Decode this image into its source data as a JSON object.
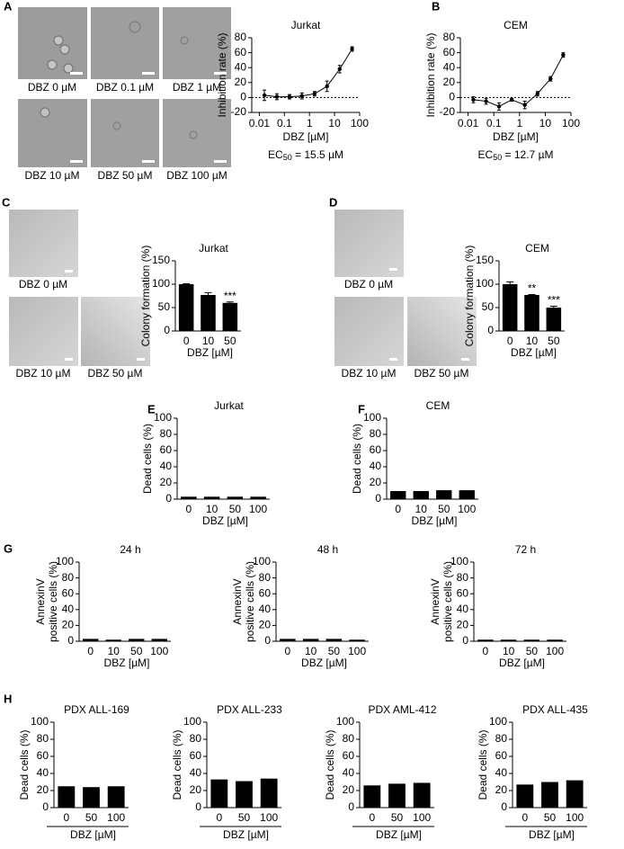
{
  "panel_labels": [
    "A",
    "B",
    "C",
    "D",
    "E",
    "F",
    "G",
    "H"
  ],
  "micrographs": {
    "A": [
      "DBZ 0 µM",
      "DBZ 0.1 µM",
      "DBZ 1 µM",
      "DBZ 10 µM",
      "DBZ 50 µM",
      "DBZ 100 µM"
    ],
    "C": [
      "DBZ 0 µM",
      "DBZ 10 µM",
      "DBZ 50 µM"
    ],
    "D": [
      "DBZ 0 µM",
      "DBZ 10 µM",
      "DBZ 50 µM"
    ]
  },
  "chart_data": [
    {
      "type": "line",
      "title": "Jurkat",
      "ylabel": "Inhibition rate (%)",
      "xlabel": "DBZ [µM]",
      "log_x": true,
      "color": "#000000",
      "x": [
        0.016,
        0.05,
        0.16,
        0.5,
        1.6,
        5,
        16,
        50
      ],
      "values": [
        3,
        1,
        1,
        2,
        5,
        15,
        38,
        65
      ],
      "errors": [
        7,
        4,
        3,
        4,
        3,
        7,
        5,
        3
      ],
      "xlim": [
        0.005,
        100
      ],
      "xticks": [
        0.01,
        0.1,
        1,
        10,
        100
      ],
      "ylim": [
        -20,
        80
      ],
      "yticks": [
        -20,
        0,
        20,
        40,
        60,
        80
      ],
      "hline": 0,
      "annotation": {
        "text": "EC",
        "subscript": "50",
        "suffix": " = 15.5 µM"
      }
    },
    {
      "type": "line",
      "title": "CEM",
      "ylabel": "Inhibition rate (%)",
      "xlabel": "DBZ [µM]",
      "log_x": true,
      "color": "#000000",
      "x": [
        0.016,
        0.05,
        0.16,
        0.5,
        1.6,
        5,
        16,
        50
      ],
      "values": [
        -3,
        -5,
        -12,
        -3,
        -10,
        5,
        25,
        57
      ],
      "errors": [
        4,
        4,
        5,
        2,
        5,
        3,
        3,
        3
      ],
      "xlim": [
        0.005,
        100
      ],
      "xticks": [
        0.01,
        0.1,
        1,
        10,
        100
      ],
      "ylim": [
        -20,
        80
      ],
      "yticks": [
        -20,
        0,
        20,
        40,
        60,
        80
      ],
      "hline": 0,
      "annotation": {
        "text": "EC",
        "subscript": "50",
        "suffix": " = 12.7 µM"
      }
    },
    {
      "type": "bar",
      "title": "Jurkat",
      "ylabel": "Colony formation (%)",
      "xlabel": "DBZ [µM]",
      "color": "#000000",
      "categories": [
        "0",
        "10",
        "50"
      ],
      "values": [
        100,
        77,
        60
      ],
      "errors": [
        1,
        5,
        2
      ],
      "ylim": [
        0,
        150
      ],
      "yticks": [
        0,
        50,
        100,
        150
      ],
      "annotations": [
        {
          "index": 2,
          "text": "***"
        }
      ]
    },
    {
      "type": "bar",
      "title": "CEM",
      "ylabel": "Colony formation (%)",
      "xlabel": "DBZ [µM]",
      "color": "#000000",
      "categories": [
        "0",
        "10",
        "50"
      ],
      "values": [
        100,
        77,
        50
      ],
      "errors": [
        5,
        1,
        3
      ],
      "ylim": [
        0,
        150
      ],
      "yticks": [
        0,
        50,
        100,
        150
      ],
      "annotations": [
        {
          "index": 1,
          "text": "**"
        },
        {
          "index": 2,
          "text": "***"
        }
      ]
    },
    {
      "type": "bar",
      "title": "Jurkat",
      "ylabel": "Dead cells (%)",
      "xlabel": "DBZ [µM]",
      "color": "#000000",
      "categories": [
        "0",
        "10",
        "50",
        "100"
      ],
      "values": [
        3,
        3,
        3,
        3
      ],
      "ylim": [
        0,
        100
      ],
      "yticks": [
        0,
        20,
        40,
        60,
        80,
        100
      ]
    },
    {
      "type": "bar",
      "title": "CEM",
      "ylabel": "Dead cells (%)",
      "xlabel": "DBZ [µM]",
      "color": "#000000",
      "categories": [
        "0",
        "10",
        "50",
        "100"
      ],
      "values": [
        10,
        10,
        11,
        11
      ],
      "ylim": [
        0,
        100
      ],
      "yticks": [
        0,
        20,
        40,
        60,
        80,
        100
      ]
    },
    {
      "type": "bar",
      "title": "24 h",
      "ylabel": [
        "AnnexinV",
        "positive cells (%)"
      ],
      "xlabel": "DBZ  [µM]",
      "color": "#000000",
      "categories": [
        "0",
        "10",
        "50",
        "100"
      ],
      "values": [
        3,
        2,
        3,
        3
      ],
      "ylim": [
        0,
        100
      ],
      "yticks": [
        0,
        20,
        40,
        60,
        80,
        100
      ]
    },
    {
      "type": "bar",
      "title": "48 h",
      "ylabel": [
        "AnnexinV",
        "positive cells (%)"
      ],
      "xlabel": "DBZ  [µM]",
      "color": "#000000",
      "categories": [
        "0",
        "10",
        "50",
        "100"
      ],
      "values": [
        3,
        3,
        3,
        2
      ],
      "ylim": [
        0,
        100
      ],
      "yticks": [
        0,
        20,
        40,
        60,
        80,
        100
      ]
    },
    {
      "type": "bar",
      "title": "72 h",
      "ylabel": [
        "AnnexinV",
        "positive cells (%)"
      ],
      "xlabel": "DBZ  [µM]",
      "color": "#000000",
      "categories": [
        "0",
        "10",
        "50",
        "100"
      ],
      "values": [
        2,
        2,
        2,
        2
      ],
      "ylim": [
        0,
        100
      ],
      "yticks": [
        0,
        20,
        40,
        60,
        80,
        100
      ]
    },
    {
      "type": "bar",
      "title": "PDX ALL-169",
      "ylabel": "Dead cells (%)",
      "xlabel": "DBZ [µM]",
      "xlabel_rule": true,
      "color": "#000000",
      "categories": [
        "0",
        "50",
        "100"
      ],
      "values": [
        25,
        24,
        25
      ],
      "ylim": [
        0,
        100
      ],
      "yticks": [
        0,
        20,
        40,
        60,
        80,
        100
      ]
    },
    {
      "type": "bar",
      "title": "PDX ALL-233",
      "ylabel": "Dead cells (%)",
      "xlabel": "DBZ [µM]",
      "xlabel_rule": true,
      "color": "#000000",
      "categories": [
        "0",
        "50",
        "100"
      ],
      "values": [
        33,
        31,
        34
      ],
      "ylim": [
        0,
        100
      ],
      "yticks": [
        0,
        20,
        40,
        60,
        80,
        100
      ]
    },
    {
      "type": "bar",
      "title": "PDX AML-412",
      "ylabel": "Dead cells (%)",
      "xlabel": "DBZ [µM]",
      "xlabel_rule": true,
      "color": "#000000",
      "categories": [
        "0",
        "50",
        "100"
      ],
      "values": [
        26,
        28,
        29
      ],
      "ylim": [
        0,
        100
      ],
      "yticks": [
        0,
        20,
        40,
        60,
        80,
        100
      ]
    },
    {
      "type": "bar",
      "title": "PDX ALL-435",
      "ylabel": "Dead cells (%)",
      "xlabel": "DBZ [µM]",
      "xlabel_rule": true,
      "color": "#000000",
      "categories": [
        "0",
        "50",
        "100"
      ],
      "values": [
        27,
        30,
        32
      ],
      "ylim": [
        0,
        100
      ],
      "yticks": [
        0,
        20,
        40,
        60,
        80,
        100
      ]
    }
  ]
}
